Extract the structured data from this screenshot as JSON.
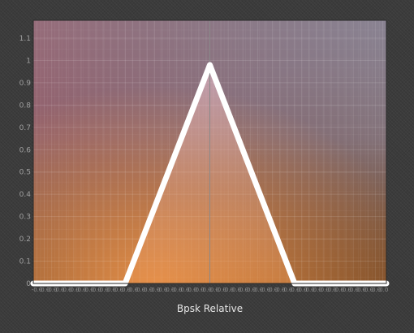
{
  "chart_data": {
    "type": "area",
    "title": "",
    "xlabel": "Bpsk Relative",
    "ylabel": "",
    "ylim": [
      0,
      1.18
    ],
    "xlim": [
      -0.5,
      0.5
    ],
    "grid": true,
    "legend": "none",
    "y_ticks": [
      "0",
      "0.1",
      "0.2",
      "0.3",
      "0.4",
      "0.5",
      "0.6",
      "0.7",
      "0.8",
      "0.9",
      "1",
      "1.1"
    ],
    "y_tick_values": [
      0,
      0.1,
      0.2,
      0.3,
      0.4,
      0.5,
      0.6,
      0.7,
      0.8,
      0.9,
      1.0,
      1.1
    ],
    "x_tick_label": "-0.0",
    "x_tick_count": 48,
    "series": [
      {
        "x": [
          -0.5,
          -0.24,
          0.0,
          0.24,
          0.5
        ],
        "y": [
          0,
          0,
          0.98,
          0,
          0
        ]
      }
    ],
    "colors": {
      "plot_bg_top_left": "#9a6370",
      "plot_bg_top_right": "#8a8797",
      "plot_bg_bottom_left": "#7a4a22",
      "plot_bg_bottom_right": "#6e4e3a",
      "glow": "#e8914a",
      "line": "#ffffff",
      "grid": "#ffffff",
      "center_line": "#8a8a8a"
    }
  }
}
